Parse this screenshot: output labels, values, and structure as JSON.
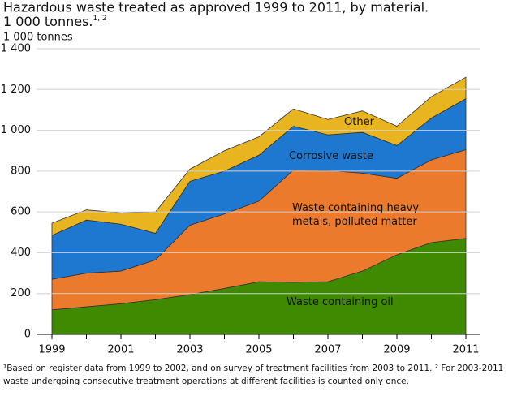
{
  "chart_data": {
    "type": "stacked-area",
    "title": "Hazardous waste treated as approved 1999 to 2011, by material.",
    "subtitle": "1 000 tonnes.",
    "subtitle_note": "1, 2",
    "y_label": "1 000 tonnes",
    "x": [
      1999,
      2000,
      2001,
      2002,
      2003,
      2004,
      2005,
      2006,
      2007,
      2008,
      2009,
      2010,
      2011
    ],
    "xlim": [
      1999,
      2011
    ],
    "xticks": [
      1999,
      2001,
      2003,
      2005,
      2007,
      2009,
      2011
    ],
    "ylim": [
      0,
      1400
    ],
    "yticks": [
      0,
      200,
      400,
      600,
      800,
      {
        "value": 1000,
        "label": "1 000"
      },
      {
        "value": 1200,
        "label": "1 200"
      },
      {
        "value": 1400,
        "label": "1 400"
      }
    ],
    "grid": true,
    "series": [
      {
        "name": "Waste containing oil",
        "color": "#3f8a00",
        "values": [
          120,
          135,
          150,
          170,
          195,
          225,
          258,
          255,
          258,
          310,
          390,
          450,
          470
        ]
      },
      {
        "name": "Waste containing heavy metals, polluted matter",
        "color": "#ec7a2c",
        "values": [
          150,
          165,
          160,
          195,
          340,
          365,
          395,
          550,
          545,
          480,
          375,
          405,
          435
        ]
      },
      {
        "name": "Corrosive waste",
        "color": "#1f78d0",
        "values": [
          215,
          260,
          230,
          130,
          215,
          210,
          225,
          215,
          175,
          200,
          160,
          205,
          250
        ]
      },
      {
        "name": "Other",
        "color": "#e8b420",
        "values": [
          60,
          50,
          55,
          105,
          60,
          100,
          90,
          85,
          75,
          105,
          95,
          105,
          105
        ]
      }
    ],
    "footnote": [
      "¹Based on register data from 1999 to 2002, and on survey of treatment facilities from 2003 to 2011. ² For 2003-2011",
      "waste undergoing consecutive treatment operations at different facilities is counted only once."
    ]
  }
}
